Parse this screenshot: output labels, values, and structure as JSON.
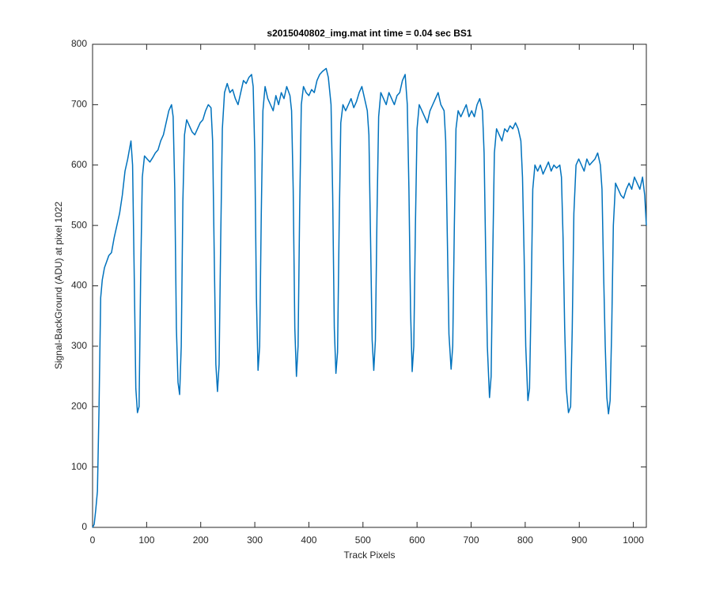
{
  "chart_data": {
    "type": "line",
    "title": "s2015040802_img.mat int time = 0.04 sec   BS1",
    "xlabel": "Track Pixels",
    "ylabel": "Signal-BackGround (ADU) at pixel 1022",
    "xlim": [
      0,
      1024
    ],
    "xticks": [
      0,
      100,
      200,
      300,
      400,
      500,
      600,
      700,
      800,
      900,
      1000
    ],
    "ylim": [
      0,
      800
    ],
    "yticks": [
      0,
      100,
      200,
      300,
      400,
      500,
      600,
      700,
      800
    ],
    "grid": false,
    "x": [
      0,
      3,
      6,
      9,
      12,
      15,
      18,
      22,
      26,
      30,
      35,
      40,
      45,
      50,
      55,
      60,
      65,
      68,
      71,
      74,
      77,
      80,
      83,
      86,
      89,
      92,
      96,
      101,
      106,
      111,
      116,
      121,
      126,
      131,
      136,
      141,
      146,
      149,
      152,
      155,
      158,
      161,
      164,
      167,
      170,
      174,
      179,
      184,
      189,
      194,
      199,
      204,
      209,
      214,
      219,
      222,
      225,
      228,
      231,
      234,
      237,
      240,
      244,
      249,
      254,
      259,
      264,
      269,
      274,
      279,
      284,
      289,
      294,
      297,
      300,
      303,
      306,
      309,
      312,
      315,
      319,
      324,
      329,
      334,
      339,
      344,
      349,
      354,
      359,
      365,
      368,
      371,
      374,
      377,
      380,
      383,
      386,
      390,
      395,
      400,
      405,
      410,
      415,
      420,
      425,
      432,
      436,
      441,
      444,
      447,
      450,
      453,
      456,
      459,
      463,
      468,
      473,
      478,
      483,
      488,
      493,
      498,
      503,
      508,
      511,
      514,
      517,
      520,
      523,
      526,
      529,
      533,
      538,
      543,
      548,
      553,
      558,
      563,
      568,
      573,
      578,
      582,
      585,
      588,
      591,
      594,
      597,
      600,
      604,
      609,
      614,
      619,
      624,
      629,
      634,
      639,
      644,
      650,
      653,
      656,
      659,
      663,
      666,
      669,
      672,
      676,
      681,
      686,
      691,
      696,
      701,
      706,
      711,
      716,
      721,
      724,
      727,
      730,
      734,
      737,
      740,
      743,
      747,
      752,
      757,
      762,
      767,
      772,
      777,
      782,
      787,
      792,
      795,
      798,
      801,
      805,
      808,
      811,
      814,
      818,
      823,
      828,
      833,
      838,
      843,
      848,
      853,
      858,
      864,
      867,
      870,
      873,
      876,
      880,
      884,
      887,
      890,
      894,
      899,
      904,
      909,
      914,
      919,
      924,
      929,
      934,
      939,
      942,
      945,
      948,
      951,
      954,
      957,
      960,
      963,
      967,
      972,
      977,
      982,
      987,
      992,
      997,
      1002,
      1007,
      1012,
      1017,
      1021,
      1024
    ],
    "series": [
      {
        "name": "BS1",
        "color": "#0072bd",
        "values": [
          0,
          5,
          30,
          60,
          200,
          380,
          410,
          430,
          440,
          450,
          455,
          480,
          500,
          520,
          550,
          590,
          610,
          625,
          640,
          600,
          420,
          230,
          190,
          200,
          420,
          580,
          615,
          610,
          605,
          612,
          620,
          625,
          640,
          650,
          670,
          690,
          700,
          680,
          560,
          330,
          240,
          220,
          300,
          540,
          650,
          675,
          665,
          655,
          650,
          660,
          670,
          675,
          690,
          700,
          695,
          640,
          450,
          270,
          225,
          270,
          480,
          660,
          720,
          735,
          720,
          725,
          710,
          700,
          720,
          740,
          735,
          745,
          750,
          730,
          620,
          380,
          260,
          300,
          520,
          690,
          730,
          710,
          700,
          690,
          715,
          700,
          720,
          710,
          730,
          715,
          690,
          560,
          330,
          250,
          300,
          530,
          700,
          730,
          720,
          715,
          725,
          720,
          740,
          750,
          755,
          760,
          745,
          700,
          550,
          330,
          255,
          290,
          500,
          670,
          700,
          690,
          700,
          710,
          695,
          705,
          720,
          730,
          710,
          690,
          650,
          480,
          310,
          260,
          310,
          520,
          680,
          720,
          710,
          700,
          720,
          710,
          700,
          715,
          720,
          740,
          750,
          700,
          560,
          360,
          258,
          300,
          500,
          660,
          700,
          690,
          680,
          670,
          690,
          700,
          710,
          720,
          700,
          690,
          640,
          480,
          320,
          262,
          300,
          500,
          660,
          690,
          680,
          690,
          700,
          680,
          690,
          680,
          700,
          710,
          690,
          620,
          450,
          300,
          215,
          250,
          450,
          620,
          660,
          650,
          640,
          660,
          655,
          665,
          660,
          670,
          660,
          640,
          580,
          450,
          300,
          210,
          230,
          380,
          560,
          600,
          590,
          600,
          585,
          595,
          605,
          590,
          600,
          595,
          600,
          580,
          480,
          330,
          230,
          190,
          200,
          330,
          520,
          600,
          610,
          600,
          590,
          610,
          600,
          605,
          610,
          620,
          600,
          560,
          420,
          300,
          215,
          188,
          210,
          330,
          500,
          570,
          560,
          550,
          545,
          560,
          570,
          560,
          580,
          570,
          560,
          580,
          550,
          500
        ]
      }
    ]
  }
}
